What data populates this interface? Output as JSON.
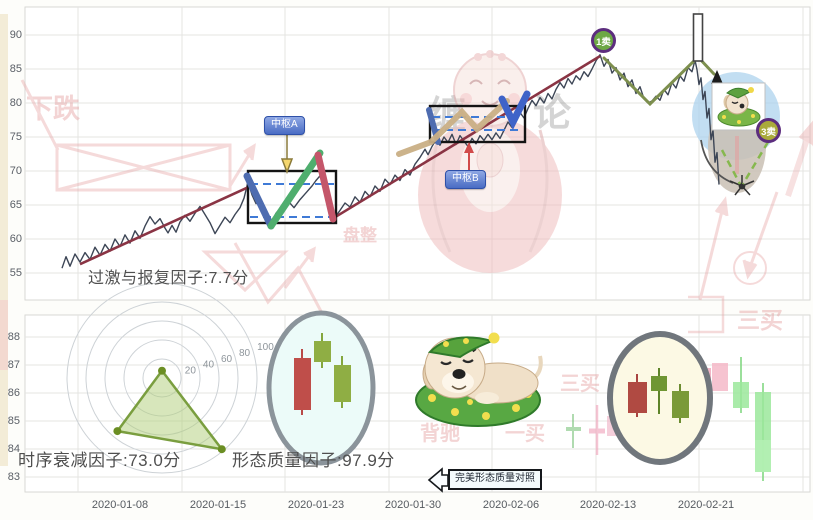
{
  "labels": {
    "pivot_a": "中枢A",
    "pivot_b": "中枢B",
    "sell1": "1卖",
    "sell3": "3卖",
    "overshoot_factor": "过激与报复因子:7.7分",
    "decay_factor": "时序衰减因子:73.0分",
    "quality_factor": "形态质量因子:97.9分",
    "compare_tag": "完美形态质量对照"
  },
  "watermarks": {
    "downtrend": "下跌",
    "consolidation": "盘整",
    "third_buy": "三买",
    "divergence": "背驰",
    "first_buy": "一买",
    "chan_char_1": "缠",
    "chan_char_2": "论"
  },
  "x_axis": {
    "dates": [
      "2020-01-08",
      "2020-01-15",
      "2020-01-23",
      "2020-01-30",
      "2020-02-06",
      "2020-02-13",
      "2020-02-21"
    ]
  },
  "top_axis_ticks": [
    90,
    85,
    80,
    75,
    70,
    65,
    60,
    55
  ],
  "bottom_axis_ticks": [
    88,
    87,
    86,
    85,
    84,
    83
  ],
  "colors": {
    "price_line": "#3d4656",
    "trend_line": "#8a3444",
    "pen_down_blue": "#4e6cb0",
    "pen_up_green": "#4fae6e",
    "pen_down_red": "#c4566a",
    "pen_tan": "#c9af85",
    "pivot_box": "#141414",
    "pivot_dashed": "#3f7ad6",
    "sell1_badge": "#6da845",
    "sell3_badge": "#a9aa3b",
    "badge_ring": "#5c2d7e",
    "watermark_pink": "#edb3b3",
    "radar_fill": "#b0cd78",
    "radar_stroke": "#7a9e3f"
  },
  "chart_data": [
    {
      "type": "line",
      "name": "main-price-structure-chart",
      "ylim": [
        55,
        90
      ],
      "y_ticks": [
        90,
        85,
        80,
        75,
        70,
        65,
        60,
        55
      ],
      "x_tick_labels": [
        "2020-01-08",
        "2020-01-15",
        "2020-01-23",
        "2020-01-30",
        "2020-02-06",
        "2020-02-13",
        "2020-02-21"
      ],
      "series": [
        {
          "name": "price",
          "points": [
            [
              62,
              55.7
            ],
            [
              66,
              57.4
            ],
            [
              70,
              56.0
            ],
            [
              75,
              57.8
            ],
            [
              80,
              56.6
            ],
            [
              85,
              58.0
            ],
            [
              90,
              57.0
            ],
            [
              95,
              58.8
            ],
            [
              100,
              57.6
            ],
            [
              105,
              59.2
            ],
            [
              110,
              58.2
            ],
            [
              115,
              60.0
            ],
            [
              120,
              58.9
            ],
            [
              125,
              60.6
            ],
            [
              130,
              59.4
            ],
            [
              135,
              61.2
            ],
            [
              140,
              60.1
            ],
            [
              145,
              61.9
            ],
            [
              150,
              63.3
            ],
            [
              155,
              62.2
            ],
            [
              160,
              63.0
            ],
            [
              165,
              61.6
            ],
            [
              168,
              60.9
            ],
            [
              172,
              62.0
            ],
            [
              176,
              61.0
            ],
            [
              180,
              62.5
            ],
            [
              185,
              63.5
            ],
            [
              190,
              62.6
            ],
            [
              195,
              63.8
            ],
            [
              200,
              64.8
            ],
            [
              205,
              63.6
            ],
            [
              210,
              62.4
            ],
            [
              215,
              60.8
            ],
            [
              220,
              62.0
            ],
            [
              225,
              63.2
            ],
            [
              230,
              62.4
            ],
            [
              235,
              63.6
            ],
            [
              240,
              64.6
            ],
            [
              244,
              66.0
            ],
            [
              248,
              68.4
            ],
            [
              252,
              66.5
            ],
            [
              256,
              65.2
            ],
            [
              260,
              66.0
            ],
            [
              264,
              64.0
            ],
            [
              268,
              63.0
            ],
            [
              272,
              62.6
            ],
            [
              276,
              63.8
            ],
            [
              282,
              64.8
            ],
            [
              288,
              65.6
            ],
            [
              294,
              64.6
            ],
            [
              300,
              65.8
            ],
            [
              306,
              66.8
            ],
            [
              312,
              67.8
            ],
            [
              316,
              68.6
            ],
            [
              320,
              69.3
            ],
            [
              326,
              66.8
            ],
            [
              330,
              65.0
            ],
            [
              335,
              63.2
            ],
            [
              340,
              64.2
            ],
            [
              345,
              65.3
            ],
            [
              350,
              64.7
            ],
            [
              355,
              66.2
            ],
            [
              360,
              65.4
            ],
            [
              365,
              67.0
            ],
            [
              370,
              66.2
            ],
            [
              375,
              67.8
            ],
            [
              380,
              67.0
            ],
            [
              385,
              68.8
            ],
            [
              390,
              68.0
            ],
            [
              395,
              69.4
            ],
            [
              400,
              68.6
            ],
            [
              405,
              70.2
            ],
            [
              410,
              69.4
            ],
            [
              415,
              71.0
            ],
            [
              420,
              72.0
            ],
            [
              425,
              73.2
            ],
            [
              428,
              72.4
            ],
            [
              432,
              73.6
            ],
            [
              436,
              74.6
            ],
            [
              440,
              73.8
            ],
            [
              444,
              75.0
            ],
            [
              448,
              74.2
            ],
            [
              452,
              75.4
            ],
            [
              456,
              73.9
            ],
            [
              460,
              75.2
            ],
            [
              464,
              74.4
            ],
            [
              468,
              73.6
            ],
            [
              472,
              74.8
            ],
            [
              476,
              74.0
            ],
            [
              480,
              75.2
            ],
            [
              484,
              74.5
            ],
            [
              488,
              75.4
            ],
            [
              492,
              74.6
            ],
            [
              496,
              75.6
            ],
            [
              500,
              74.8
            ],
            [
              504,
              76.0
            ],
            [
              508,
              77.2
            ],
            [
              512,
              76.4
            ],
            [
              516,
              77.6
            ],
            [
              520,
              78.6
            ],
            [
              524,
              77.8
            ],
            [
              528,
              79.2
            ],
            [
              532,
              80.4
            ],
            [
              536,
              79.6
            ],
            [
              540,
              80.8
            ],
            [
              544,
              80.0
            ],
            [
              548,
              81.4
            ],
            [
              552,
              80.6
            ],
            [
              556,
              82.0
            ],
            [
              560,
              83.0
            ],
            [
              564,
              82.2
            ],
            [
              568,
              83.6
            ],
            [
              572,
              82.8
            ],
            [
              576,
              84.0
            ],
            [
              580,
              83.4
            ],
            [
              584,
              84.6
            ],
            [
              588,
              83.9
            ],
            [
              592,
              85.0
            ],
            [
              596,
              86.2
            ],
            [
              600,
              87.1
            ],
            [
              604,
              85.4
            ],
            [
              608,
              86.4
            ],
            [
              612,
              84.4
            ],
            [
              616,
              85.2
            ],
            [
              620,
              83.4
            ],
            [
              624,
              84.4
            ],
            [
              628,
              82.4
            ],
            [
              632,
              83.4
            ],
            [
              636,
              81.4
            ],
            [
              640,
              82.4
            ],
            [
              644,
              80.6
            ],
            [
              648,
              80.0
            ],
            [
              652,
              80.3
            ],
            [
              656,
              81.0
            ],
            [
              660,
              80.4
            ],
            [
              664,
              82.0
            ],
            [
              668,
              81.2
            ],
            [
              672,
              83.0
            ],
            [
              676,
              82.2
            ],
            [
              680,
              84.0
            ],
            [
              684,
              83.2
            ],
            [
              688,
              85.2
            ],
            [
              692,
              84.6
            ],
            [
              695,
              86.3
            ],
            [
              697,
              84.9
            ],
            [
              699,
              82.7
            ],
            [
              701,
              83.7
            ],
            [
              703,
              80.5
            ],
            [
              705,
              81.7
            ],
            [
              707,
              77.8
            ],
            [
              709,
              79.2
            ],
            [
              711,
              74.6
            ],
            [
              713,
              76.0
            ],
            [
              715,
              71.3
            ],
            [
              717,
              72.7
            ],
            [
              719,
              68.0
            ]
          ]
        },
        {
          "name": "trend-line-1",
          "points": [
            [
              80,
              56.3
            ],
            [
              248,
              67.6
            ]
          ]
        },
        {
          "name": "trend-line-2",
          "points": [
            [
              335,
              63.2
            ],
            [
              600,
              86.9
            ]
          ]
        }
      ],
      "annotations": {
        "pivot_a": {
          "label": "中枢A",
          "x_range": [
            248,
            336
          ],
          "price_range": [
            62.4,
            70.0
          ]
        },
        "pivot_b": {
          "label": "中枢B",
          "x_range": [
            430,
            525
          ],
          "price_range": [
            74.3,
            79.6
          ]
        },
        "sell_point_1": {
          "label": "1卖",
          "price": 87.1
        },
        "sell_point_3": {
          "label": "3卖"
        },
        "overshoot_factor_text": "过激与报复因子:7.7分"
      }
    },
    {
      "type": "radar",
      "name": "factor-radar",
      "max": 100,
      "ticks": [
        20,
        40,
        60,
        80,
        100
      ],
      "axes": [
        {
          "label": "过激与报复因子",
          "value": 7.7
        },
        {
          "label": "形态质量因子",
          "value": 97.9
        },
        {
          "label": "时序衰减因子",
          "value": 73.0
        }
      ]
    },
    {
      "type": "candlestick",
      "name": "pattern-inset-actual",
      "candles": [
        "red",
        "green",
        "green"
      ]
    },
    {
      "type": "candlestick",
      "name": "pattern-inset-perfect",
      "candles": [
        "red",
        "green",
        "green"
      ]
    },
    {
      "type": "candlestick",
      "name": "bottom-kline-visible",
      "ylim": [
        83,
        88.8
      ],
      "candles": [
        "green-doji",
        "pink-doji",
        "pink",
        "pink",
        "green",
        "green"
      ]
    }
  ]
}
